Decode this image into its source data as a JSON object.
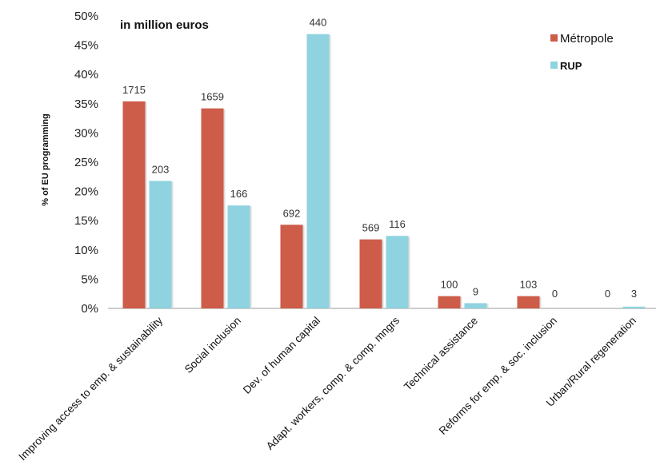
{
  "chart_data": {
    "type": "bar",
    "unit_note": "in million euros",
    "ylabel": "% of EU programming",
    "ylim": [
      0,
      50
    ],
    "yticks": [
      "0%",
      "5%",
      "10%",
      "15%",
      "20%",
      "25%",
      "30%",
      "35%",
      "40%",
      "45%",
      "50%"
    ],
    "categories": [
      "Improving access to emp. & sustainability",
      "Social inclusion",
      "Dev. of human capital",
      "Adapt. workers, comp. & comp. mngrs",
      "Technical assistance",
      "Reforms for emp. & soc. inclusion",
      "Urban/Rural regeneration"
    ],
    "series": [
      {
        "name": "Métropole",
        "color": "#cd5c49",
        "values": [
          35.4,
          34.2,
          14.3,
          11.8,
          2.1,
          2.1,
          0
        ],
        "labels": [
          "1715",
          "1659",
          "692",
          "569",
          "100",
          "103",
          "0"
        ]
      },
      {
        "name": "RUP",
        "color": "#8fd3e0",
        "values": [
          21.8,
          17.6,
          46.9,
          12.4,
          0.9,
          0,
          0.3
        ],
        "labels": [
          "203",
          "166",
          "440",
          "116",
          "9",
          "0",
          "3"
        ]
      }
    ],
    "legend_position": "top-right",
    "grid": false
  }
}
